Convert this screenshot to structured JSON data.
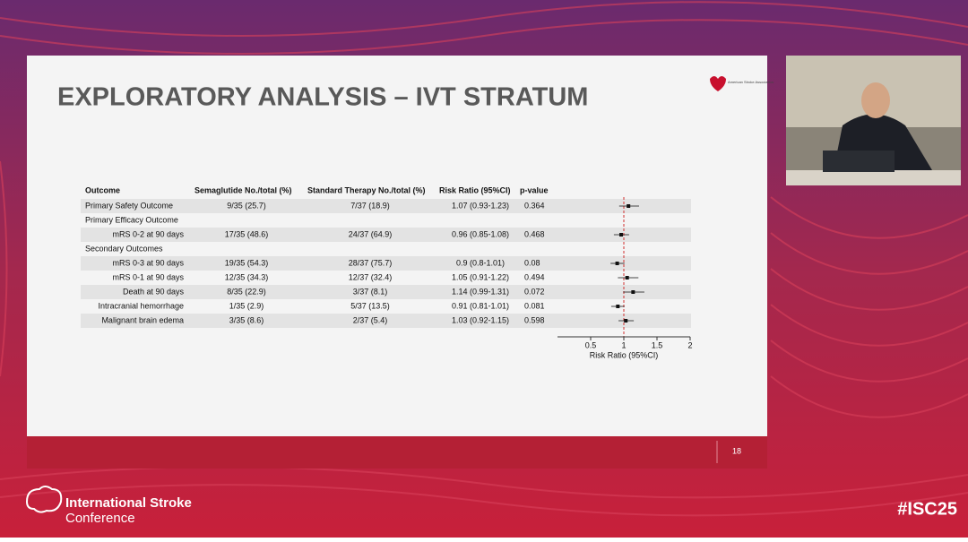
{
  "slide": {
    "title": "EXPLORATORY ANALYSIS – IVT STRATUM",
    "logo_text": "American Stroke Association.",
    "page_number": "18"
  },
  "table": {
    "headers": [
      "Outcome",
      "Semaglutide No./total (%)",
      "Standard Therapy No./total (%)",
      "Risk Ratio (95%CI)",
      "p-value"
    ],
    "groups": [
      {
        "rows": [
          {
            "outcome": "Primary Safety Outcome",
            "semaglutide": "9/35 (25.7)",
            "standard": "7/37 (18.9)",
            "rr_label": "1.07 (0.93-1.23)",
            "p": "0.364",
            "rr": 1.07,
            "lo": 0.93,
            "hi": 1.23
          }
        ]
      },
      {
        "title": "Primary Efficacy Outcome",
        "rows": [
          {
            "outcome": "mRS 0-2 at 90 days",
            "semaglutide": "17/35 (48.6)",
            "standard": "24/37 (64.9)",
            "rr_label": "0.96 (0.85-1.08)",
            "p": "0.468",
            "rr": 0.96,
            "lo": 0.85,
            "hi": 1.08
          }
        ]
      },
      {
        "title": "Secondary Outcomes",
        "rows": [
          {
            "outcome": "mRS 0-3 at 90 days",
            "semaglutide": "19/35 (54.3)",
            "standard": "28/37 (75.7)",
            "rr_label": "0.9 (0.8-1.01)",
            "p": "0.08",
            "rr": 0.9,
            "lo": 0.8,
            "hi": 1.01
          },
          {
            "outcome": "mRS 0-1 at 90 days",
            "semaglutide": "12/35 (34.3)",
            "standard": "12/37 (32.4)",
            "rr_label": "1.05 (0.91-1.22)",
            "p": "0.494",
            "rr": 1.05,
            "lo": 0.91,
            "hi": 1.22
          },
          {
            "outcome": "Death at 90 days",
            "semaglutide": "8/35 (22.9)",
            "standard": "3/37 (8.1)",
            "rr_label": "1.14 (0.99-1.31)",
            "p": "0.072",
            "rr": 1.14,
            "lo": 0.99,
            "hi": 1.31
          },
          {
            "outcome": "Intracranial hemorrhage",
            "semaglutide": "1/35 (2.9)",
            "standard": "5/37 (13.5)",
            "rr_label": "0.91 (0.81-1.01)",
            "p": "0.081",
            "rr": 0.91,
            "lo": 0.81,
            "hi": 1.01
          },
          {
            "outcome": "Malignant brain edema",
            "semaglutide": "3/35 (8.6)",
            "standard": "2/37 (5.4)",
            "rr_label": "1.03 (0.92-1.15)",
            "p": "0.598",
            "rr": 1.03,
            "lo": 0.92,
            "hi": 1.15
          }
        ]
      }
    ]
  },
  "forest": {
    "xlabel": "Risk Ratio (95%CI)",
    "xlim": [
      0,
      2
    ],
    "xticks": [
      0.5,
      1,
      1.5,
      2
    ],
    "reference": 1,
    "color": "#111111",
    "reference_color": "#d03030"
  },
  "footer": {
    "conference_line1": "International Stroke",
    "conference_line2": "Conference",
    "hashtag": "#ISC25"
  }
}
